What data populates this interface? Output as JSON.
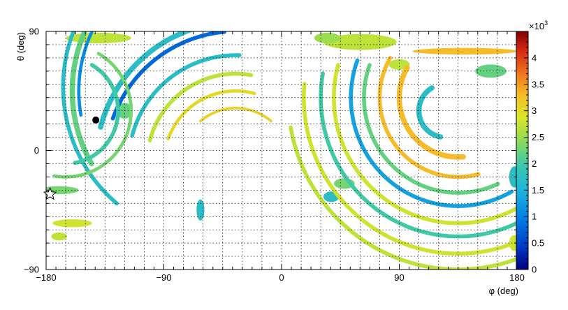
{
  "chart_data": {
    "type": "heatmap",
    "title": "",
    "xlabel": "φ (deg)",
    "ylabel": "θ (deg)",
    "xlim": [
      -180,
      180
    ],
    "ylim": [
      -90,
      90
    ],
    "x_ticks": [
      -180,
      -90,
      0,
      90,
      180
    ],
    "y_ticks": [
      -90,
      0,
      90
    ],
    "x_tick_labels": [
      "−180",
      "−90",
      "0",
      "90",
      "180"
    ],
    "y_tick_labels": [
      "−90",
      "0",
      "90"
    ],
    "grid": true,
    "colorbar": {
      "range": [
        0,
        4500
      ],
      "ticks": [
        0,
        500,
        1000,
        1500,
        2000,
        2500,
        3000,
        3500,
        4000
      ],
      "tick_labels": [
        "0",
        "0.5",
        "1",
        "1.5",
        "2",
        "2.5",
        "3",
        "3.5",
        "4"
      ],
      "multiplier_base": "×10",
      "multiplier_exp": "3"
    },
    "arcs": [
      {
        "cx": -50,
        "cy": 45,
        "r": 105,
        "a0": 140,
        "a1": 190,
        "value": 1100,
        "width": 2.5
      },
      {
        "cx": -50,
        "cy": 45,
        "r": 110,
        "a0": 130,
        "a1": 210,
        "value": 2200,
        "width": 4
      },
      {
        "cx": -52,
        "cy": 48,
        "r": 115,
        "a0": 155,
        "a1": 230,
        "value": 1700,
        "width": 3
      },
      {
        "cx": -35,
        "cy": -10,
        "r": 100,
        "a0": 95,
        "a1": 160,
        "value": 800,
        "width": 3
      },
      {
        "cx": -35,
        "cy": -10,
        "r": 107,
        "a0": 95,
        "a1": 165,
        "value": 1700,
        "width": 4
      },
      {
        "cx": -35,
        "cy": -10,
        "r": 82,
        "a0": 88,
        "a1": 165,
        "value": 1700,
        "width": 3
      },
      {
        "cx": -35,
        "cy": -10,
        "r": 68,
        "a0": 80,
        "a1": 165,
        "value": 2700,
        "width": 3
      },
      {
        "cx": -35,
        "cy": -10,
        "r": 55,
        "a0": 75,
        "a1": 160,
        "value": 3000,
        "width": 2.5
      },
      {
        "cx": -35,
        "cy": -10,
        "r": 42,
        "a0": 50,
        "a1": 130,
        "value": 3100,
        "width": 2
      },
      {
        "cx": 135,
        "cy": 40,
        "r": 45,
        "a0": 150,
        "a1": 275,
        "value": 3300,
        "width": 4
      },
      {
        "cx": 135,
        "cy": 40,
        "r": 60,
        "a0": 150,
        "a1": 285,
        "value": 3300,
        "width": 3
      },
      {
        "cx": 135,
        "cy": 40,
        "r": 72,
        "a0": 160,
        "a1": 295,
        "value": 2200,
        "width": 3
      },
      {
        "cx": 135,
        "cy": 40,
        "r": 82,
        "a0": 160,
        "a1": 300,
        "value": 1300,
        "width": 3
      },
      {
        "cx": 135,
        "cy": 40,
        "r": 95,
        "a0": 165,
        "a1": 305,
        "value": 2800,
        "width": 3
      },
      {
        "cx": 135,
        "cy": 40,
        "r": 105,
        "a0": 170,
        "a1": 305,
        "value": 2000,
        "width": 3
      },
      {
        "cx": 135,
        "cy": 40,
        "r": 118,
        "a0": 175,
        "a1": 305,
        "value": 2800,
        "width": 3
      },
      {
        "cx": 135,
        "cy": 40,
        "r": 130,
        "a0": 190,
        "a1": 310,
        "value": 2700,
        "width": 3
      },
      {
        "cx": 125,
        "cy": 30,
        "r": 20,
        "a0": 120,
        "a1": 260,
        "value": 1700,
        "width": 4
      },
      {
        "cx": -165,
        "cy": 30,
        "r": 40,
        "a0": 280,
        "a1": 420,
        "value": 2000,
        "width": 3
      },
      {
        "cx": -165,
        "cy": 30,
        "r": 50,
        "a0": 260,
        "a1": 420,
        "value": 2300,
        "width": 2.5
      }
    ],
    "blobs": [
      {
        "x": -140,
        "y": 85,
        "rx": 25,
        "ry": 4,
        "value": 2700
      },
      {
        "x": 60,
        "y": 82,
        "rx": 28,
        "ry": 6,
        "value": 2700
      },
      {
        "x": 140,
        "y": 75,
        "rx": 40,
        "ry": 2.5,
        "value": 3300
      },
      {
        "x": 35,
        "y": 85,
        "rx": 10,
        "ry": 4,
        "value": 2500
      },
      {
        "x": 90,
        "y": 65,
        "rx": 8,
        "ry": 4,
        "value": 2700
      },
      {
        "x": 160,
        "y": 60,
        "rx": 12,
        "ry": 5,
        "value": 2200
      },
      {
        "x": -170,
        "y": -30,
        "rx": 15,
        "ry": 3,
        "value": 2300
      },
      {
        "x": -160,
        "y": -55,
        "rx": 15,
        "ry": 3,
        "value": 2800
      },
      {
        "x": -170,
        "y": -65,
        "rx": 6,
        "ry": 3,
        "value": 2700
      },
      {
        "x": -62,
        "y": -45,
        "rx": 3,
        "ry": 8,
        "value": 1700
      },
      {
        "x": 48,
        "y": -25,
        "rx": 8,
        "ry": 4,
        "value": 2300
      },
      {
        "x": 38,
        "y": -35,
        "rx": 6,
        "ry": 4,
        "value": 1700
      },
      {
        "x": -120,
        "y": 30,
        "rx": 6,
        "ry": 6,
        "value": 2200
      },
      {
        "x": 178,
        "y": -20,
        "rx": 4,
        "ry": 8,
        "value": 1700
      },
      {
        "x": 178,
        "y": -70,
        "rx": 4,
        "ry": 6,
        "value": 2800
      }
    ],
    "markers": [
      {
        "name": "circle",
        "x": -142,
        "y": 23
      },
      {
        "name": "star",
        "x": -177,
        "y": -33
      }
    ]
  }
}
